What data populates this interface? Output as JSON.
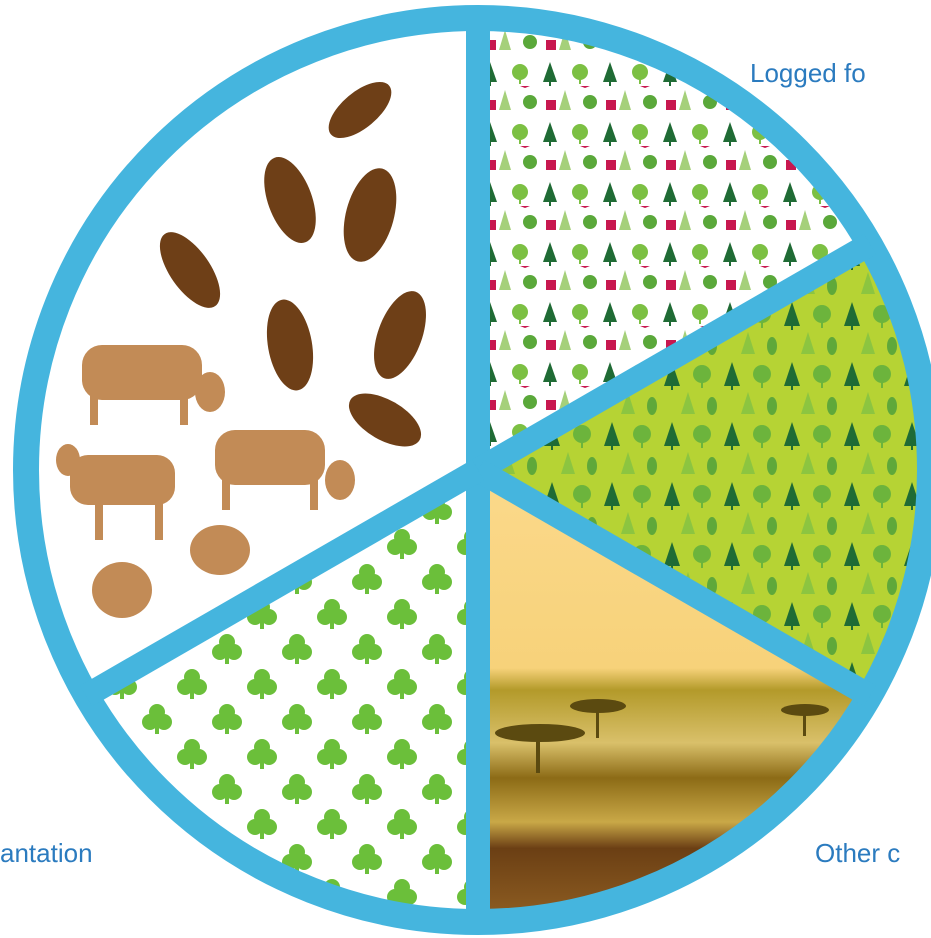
{
  "labels": {
    "logged": "Logged fo",
    "plantation": "antation",
    "other": "Other c"
  }
}
